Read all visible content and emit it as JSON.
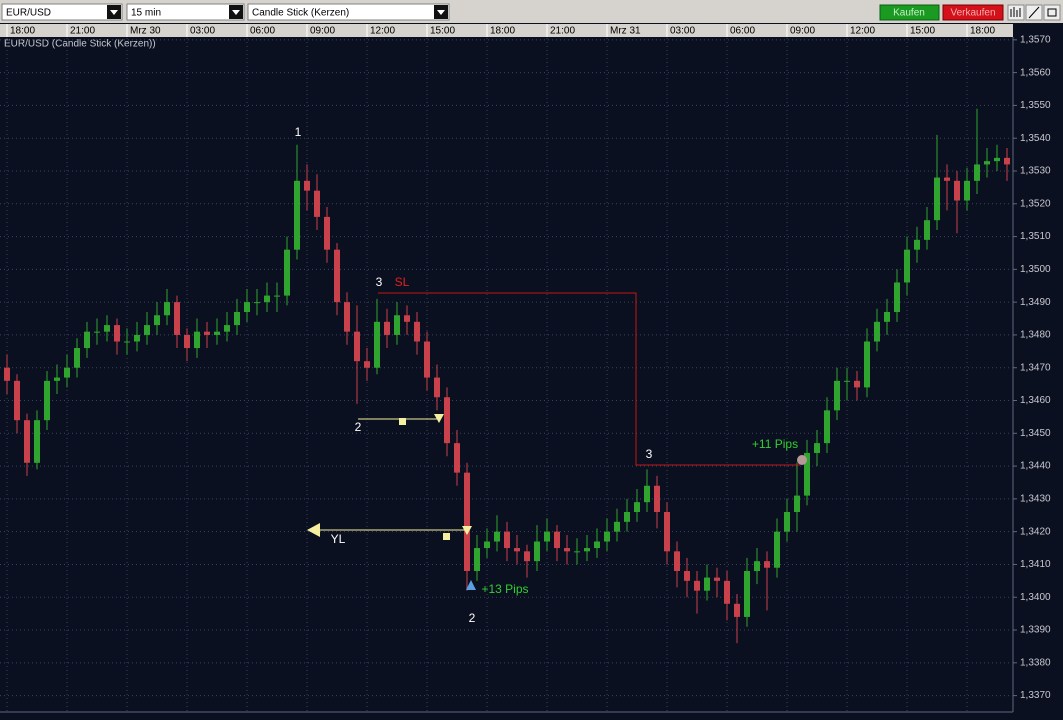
{
  "toolbar": {
    "symbol": "EUR/USD",
    "interval": "15 min",
    "chart_type": "Candle Stick (Kerzen)",
    "buy": "Kaufen",
    "sell": "Verkaufen"
  },
  "chart_data": {
    "type": "candlestick",
    "title": "EUR/USD (Candle Stick (Kerzen))",
    "up_color": "#2fa52f",
    "down_color": "#c8414b",
    "grid": true,
    "xlim": [
      -0.7,
      100.7
    ],
    "xticks": [
      {
        "value": 0,
        "label": "18:00"
      },
      {
        "value": 6,
        "label": "21:00"
      },
      {
        "value": 12,
        "label": "Mrz 30"
      },
      {
        "value": 18,
        "label": "03:00"
      },
      {
        "value": 24,
        "label": "06:00"
      },
      {
        "value": 30,
        "label": "09:00"
      },
      {
        "value": 36,
        "label": "12:00"
      },
      {
        "value": 42,
        "label": "15:00"
      },
      {
        "value": 48,
        "label": "18:00"
      },
      {
        "value": 54,
        "label": "21:00"
      },
      {
        "value": 60,
        "label": "Mrz 31"
      },
      {
        "value": 66,
        "label": "03:00"
      },
      {
        "value": 72,
        "label": "06:00"
      },
      {
        "value": 78,
        "label": "09:00"
      },
      {
        "value": 84,
        "label": "12:00"
      },
      {
        "value": 90,
        "label": "15:00"
      },
      {
        "value": 96,
        "label": "18:00"
      }
    ],
    "ylim": [
      1.3365,
      1.3573
    ],
    "yticks": [
      {
        "value": 1.337,
        "label": "1,3370"
      },
      {
        "value": 1.338,
        "label": "1,3380"
      },
      {
        "value": 1.339,
        "label": "1,3390"
      },
      {
        "value": 1.34,
        "label": "1,3400"
      },
      {
        "value": 1.341,
        "label": "1,3410"
      },
      {
        "value": 1.342,
        "label": "1,3420"
      },
      {
        "value": 1.343,
        "label": "1,3430"
      },
      {
        "value": 1.344,
        "label": "1,3440"
      },
      {
        "value": 1.345,
        "label": "1,3450"
      },
      {
        "value": 1.346,
        "label": "1,3460"
      },
      {
        "value": 1.347,
        "label": "1,3470"
      },
      {
        "value": 1.348,
        "label": "1,3480"
      },
      {
        "value": 1.349,
        "label": "1,3490"
      },
      {
        "value": 1.35,
        "label": "1,3500"
      },
      {
        "value": 1.351,
        "label": "1,3510"
      },
      {
        "value": 1.352,
        "label": "1,3520"
      },
      {
        "value": 1.353,
        "label": "1,3530"
      },
      {
        "value": 1.354,
        "label": "1,3540"
      },
      {
        "value": 1.355,
        "label": "1,3550"
      },
      {
        "value": 1.356,
        "label": "1,3560"
      },
      {
        "value": 1.357,
        "label": "1,3570"
      }
    ],
    "annotations": [
      "1",
      "2",
      "3",
      "SL",
      "2",
      "YL",
      "+13 Pips",
      "3",
      "+11 Pips"
    ],
    "candles": [
      [
        1.347,
        1.3474,
        1.3462,
        1.3466
      ],
      [
        1.3466,
        1.3468,
        1.345,
        1.3454
      ],
      [
        1.3454,
        1.3456,
        1.3437,
        1.3441
      ],
      [
        1.3441,
        1.3457,
        1.3439,
        1.3454
      ],
      [
        1.3454,
        1.3469,
        1.3451,
        1.3466
      ],
      [
        1.3466,
        1.3471,
        1.3462,
        1.3467
      ],
      [
        1.3467,
        1.3474,
        1.3464,
        1.347
      ],
      [
        1.347,
        1.3479,
        1.3467,
        1.3476
      ],
      [
        1.3476,
        1.3484,
        1.3473,
        1.3481
      ],
      [
        1.3481,
        1.3485,
        1.3477,
        1.3481
      ],
      [
        1.3481,
        1.3486,
        1.3478,
        1.3483
      ],
      [
        1.3483,
        1.3485,
        1.3474,
        1.3478
      ],
      [
        1.3478,
        1.3482,
        1.3474,
        1.3478
      ],
      [
        1.3478,
        1.3484,
        1.3475,
        1.348
      ],
      [
        1.348,
        1.3487,
        1.3477,
        1.3483
      ],
      [
        1.3483,
        1.349,
        1.348,
        1.3486
      ],
      [
        1.3486,
        1.3494,
        1.3483,
        1.349
      ],
      [
        1.349,
        1.3492,
        1.3476,
        1.348
      ],
      [
        1.348,
        1.3482,
        1.3472,
        1.3476
      ],
      [
        1.3476,
        1.3485,
        1.3473,
        1.3481
      ],
      [
        1.3481,
        1.3484,
        1.3476,
        1.348
      ],
      [
        1.348,
        1.3485,
        1.3477,
        1.3481
      ],
      [
        1.3481,
        1.3487,
        1.3478,
        1.3483
      ],
      [
        1.3483,
        1.3491,
        1.348,
        1.3487
      ],
      [
        1.3487,
        1.3494,
        1.3484,
        1.349
      ],
      [
        1.349,
        1.3494,
        1.3486,
        1.349
      ],
      [
        1.349,
        1.3496,
        1.3487,
        1.3492
      ],
      [
        1.3492,
        1.3496,
        1.3487,
        1.3492
      ],
      [
        1.3492,
        1.351,
        1.3489,
        1.3506
      ],
      [
        1.3506,
        1.3538,
        1.3503,
        1.3527
      ],
      [
        1.3527,
        1.3532,
        1.3518,
        1.3524
      ],
      [
        1.3524,
        1.3529,
        1.3512,
        1.3516
      ],
      [
        1.3516,
        1.3519,
        1.3502,
        1.3506
      ],
      [
        1.3506,
        1.3508,
        1.3486,
        1.349
      ],
      [
        1.349,
        1.3493,
        1.3477,
        1.3481
      ],
      [
        1.3481,
        1.3489,
        1.3459,
        1.3472
      ],
      [
        1.3472,
        1.3476,
        1.3466,
        1.347
      ],
      [
        1.347,
        1.3491,
        1.3468,
        1.3484
      ],
      [
        1.3484,
        1.3488,
        1.3476,
        1.348
      ],
      [
        1.348,
        1.349,
        1.3477,
        1.3486
      ],
      [
        1.3486,
        1.3489,
        1.348,
        1.3484
      ],
      [
        1.3484,
        1.3487,
        1.3474,
        1.3478
      ],
      [
        1.3478,
        1.3481,
        1.3463,
        1.3467
      ],
      [
        1.3467,
        1.3471,
        1.3457,
        1.3461
      ],
      [
        1.3461,
        1.3464,
        1.3443,
        1.3447
      ],
      [
        1.3447,
        1.3451,
        1.3434,
        1.3438
      ],
      [
        1.3438,
        1.3441,
        1.3402,
        1.3408
      ],
      [
        1.3408,
        1.3419,
        1.3405,
        1.3415
      ],
      [
        1.3415,
        1.3421,
        1.3412,
        1.3417
      ],
      [
        1.3417,
        1.3425,
        1.3414,
        1.342
      ],
      [
        1.342,
        1.3423,
        1.3411,
        1.3415
      ],
      [
        1.3415,
        1.3419,
        1.341,
        1.3414
      ],
      [
        1.3414,
        1.3416,
        1.3406,
        1.3411
      ],
      [
        1.3411,
        1.3422,
        1.3408,
        1.3417
      ],
      [
        1.3417,
        1.3424,
        1.3414,
        1.342
      ],
      [
        1.342,
        1.3422,
        1.3411,
        1.3415
      ],
      [
        1.3415,
        1.3419,
        1.341,
        1.3414
      ],
      [
        1.3414,
        1.3418,
        1.341,
        1.3414
      ],
      [
        1.3414,
        1.3419,
        1.3411,
        1.3415
      ],
      [
        1.3415,
        1.3421,
        1.3412,
        1.3417
      ],
      [
        1.3417,
        1.3424,
        1.3414,
        1.342
      ],
      [
        1.342,
        1.3427,
        1.3417,
        1.3423
      ],
      [
        1.3423,
        1.343,
        1.342,
        1.3426
      ],
      [
        1.3426,
        1.3433,
        1.3423,
        1.3429
      ],
      [
        1.3429,
        1.3439,
        1.3426,
        1.3434
      ],
      [
        1.3434,
        1.3437,
        1.3421,
        1.3426
      ],
      [
        1.3426,
        1.3429,
        1.341,
        1.3414
      ],
      [
        1.3414,
        1.3417,
        1.3403,
        1.3408
      ],
      [
        1.3408,
        1.3412,
        1.34,
        1.3405
      ],
      [
        1.3405,
        1.3408,
        1.3395,
        1.3402
      ],
      [
        1.3402,
        1.341,
        1.3399,
        1.3406
      ],
      [
        1.3406,
        1.3409,
        1.34,
        1.3405
      ],
      [
        1.3405,
        1.3408,
        1.3393,
        1.3398
      ],
      [
        1.3398,
        1.3401,
        1.3386,
        1.3394
      ],
      [
        1.3394,
        1.3412,
        1.3391,
        1.3408
      ],
      [
        1.3408,
        1.3415,
        1.3404,
        1.3411
      ],
      [
        1.3411,
        1.3414,
        1.3396,
        1.3409
      ],
      [
        1.3409,
        1.3424,
        1.3406,
        1.342
      ],
      [
        1.342,
        1.343,
        1.3417,
        1.3426
      ],
      [
        1.3426,
        1.3441,
        1.342,
        1.3431
      ],
      [
        1.3431,
        1.3448,
        1.3428,
        1.3444
      ],
      [
        1.3444,
        1.3451,
        1.344,
        1.3447
      ],
      [
        1.3447,
        1.3461,
        1.3444,
        1.3457
      ],
      [
        1.3457,
        1.347,
        1.3454,
        1.3466
      ],
      [
        1.3466,
        1.347,
        1.346,
        1.3466
      ],
      [
        1.3466,
        1.3469,
        1.346,
        1.3464
      ],
      [
        1.3464,
        1.3482,
        1.3461,
        1.3478
      ],
      [
        1.3478,
        1.3488,
        1.3475,
        1.3484
      ],
      [
        1.3484,
        1.3491,
        1.348,
        1.3487
      ],
      [
        1.3487,
        1.35,
        1.3484,
        1.3496
      ],
      [
        1.3496,
        1.351,
        1.3492,
        1.3506
      ],
      [
        1.3506,
        1.3513,
        1.3502,
        1.3509
      ],
      [
        1.3509,
        1.3519,
        1.3506,
        1.3515
      ],
      [
        1.3515,
        1.3541,
        1.3512,
        1.3528
      ],
      [
        1.3528,
        1.3532,
        1.3518,
        1.3527
      ],
      [
        1.3527,
        1.353,
        1.3511,
        1.3521
      ],
      [
        1.3521,
        1.3531,
        1.3518,
        1.3527
      ],
      [
        1.3527,
        1.3549,
        1.3523,
        1.3532
      ],
      [
        1.3532,
        1.3537,
        1.3528,
        1.3533
      ],
      [
        1.3533,
        1.3538,
        1.353,
        1.3534
      ],
      [
        1.3534,
        1.3537,
        1.3527,
        1.3532
      ]
    ]
  }
}
